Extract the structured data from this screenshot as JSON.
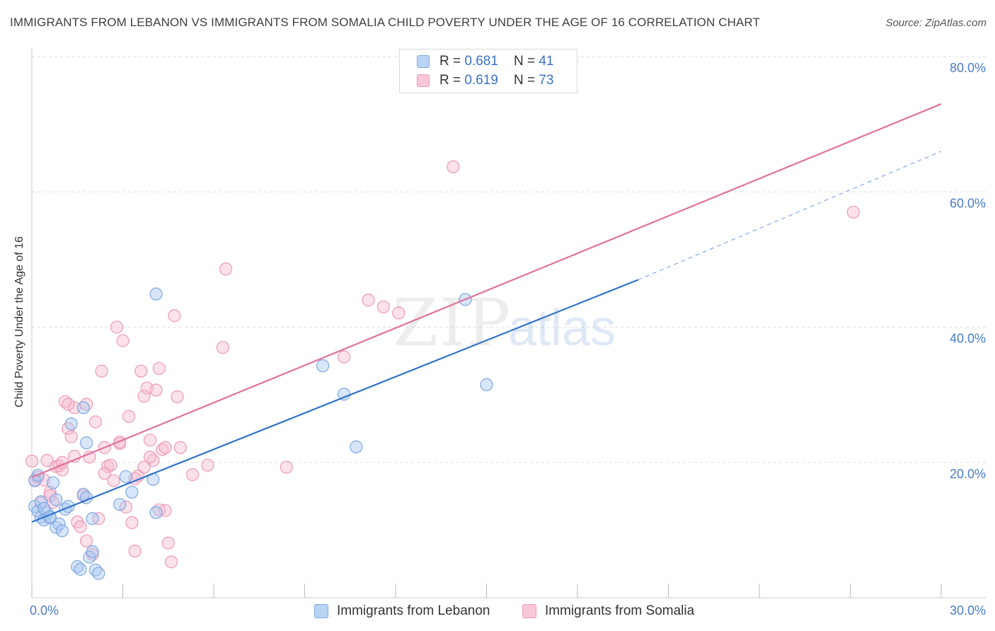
{
  "title": "IMMIGRANTS FROM LEBANON VS IMMIGRANTS FROM SOMALIA CHILD POVERTY UNDER THE AGE OF 16 CORRELATION CHART",
  "source": "Source: ZipAtlas.com",
  "watermark": {
    "zip": "ZIP",
    "atlas": "atlas"
  },
  "legend": {
    "rows": [
      {
        "r_label": "R = ",
        "r_value": "0.681",
        "n_label": "N = ",
        "n_value": "41"
      },
      {
        "r_label": "R = ",
        "r_value": "0.619",
        "n_label": "N = ",
        "n_value": "73"
      }
    ]
  },
  "colors": {
    "lebanon_fill": "#a9c8f2",
    "lebanon_stroke": "#7fa8e0",
    "lebanon_line": "#2f72cc",
    "somalia_fill": "#f7bcd0",
    "somalia_stroke": "#ec9ab6",
    "somalia_line": "#e0719a",
    "grid": "#dddddd",
    "tick_text": "#4a7cc9"
  },
  "chart_data": {
    "type": "scatter",
    "title": "IMMIGRANTS FROM LEBANON VS IMMIGRANTS FROM SOMALIA CHILD POVERTY UNDER THE AGE OF 16 CORRELATION CHART",
    "xlabel": "",
    "ylabel": "Child Poverty Under the Age of 16",
    "xlim": [
      0,
      30
    ],
    "ylim": [
      0,
      80
    ],
    "x_tick_labels": [
      "0.0%",
      "30.0%"
    ],
    "y_ticks": [
      20,
      40,
      60,
      80
    ],
    "y_tick_labels": [
      "20.0%",
      "40.0%",
      "60.0%",
      "80.0%"
    ],
    "grid": true,
    "legend_position": "top-center",
    "series": [
      {
        "name": "Immigrants from Lebanon",
        "R": 0.681,
        "N": 41,
        "points": [
          [
            0.1,
            13.5
          ],
          [
            0.2,
            12.8
          ],
          [
            0.3,
            14.2
          ],
          [
            0.3,
            11.9
          ],
          [
            0.4,
            11.5
          ],
          [
            0.5,
            12.5
          ],
          [
            0.6,
            11.8
          ],
          [
            0.7,
            17.0
          ],
          [
            0.8,
            10.4
          ],
          [
            0.8,
            14.5
          ],
          [
            0.9,
            10.9
          ],
          [
            1.0,
            9.9
          ],
          [
            1.1,
            13.1
          ],
          [
            1.2,
            13.5
          ],
          [
            1.3,
            25.7
          ],
          [
            1.5,
            4.6
          ],
          [
            1.6,
            4.2
          ],
          [
            1.7,
            15.3
          ],
          [
            1.7,
            28.1
          ],
          [
            1.8,
            14.8
          ],
          [
            1.8,
            22.9
          ],
          [
            1.9,
            6.0
          ],
          [
            2.0,
            11.7
          ],
          [
            2.0,
            6.8
          ],
          [
            2.1,
            4.1
          ],
          [
            2.2,
            3.6
          ],
          [
            2.9,
            13.8
          ],
          [
            3.1,
            17.9
          ],
          [
            3.3,
            15.6
          ],
          [
            4.0,
            17.5
          ],
          [
            4.1,
            12.6
          ],
          [
            4.1,
            44.9
          ],
          [
            9.6,
            34.3
          ],
          [
            10.3,
            30.1
          ],
          [
            10.7,
            22.3
          ],
          [
            14.3,
            44.1
          ],
          [
            15.0,
            31.5
          ],
          [
            0.1,
            17.3
          ],
          [
            0.2,
            18.1
          ],
          [
            0.4,
            13.2
          ],
          [
            0.6,
            12.0
          ]
        ],
        "trend": {
          "x_start": 0,
          "y_start": 11.2,
          "x_solid_end": 20.0,
          "y_solid_end": 47.0,
          "x_end": 30,
          "y_end": 66.0,
          "dashed_extension": true
        }
      },
      {
        "name": "Immigrants from Somalia",
        "R": 0.619,
        "N": 73,
        "points": [
          [
            0.0,
            20.2
          ],
          [
            0.1,
            17.4
          ],
          [
            0.2,
            17.8
          ],
          [
            0.3,
            14.0
          ],
          [
            0.4,
            17.4
          ],
          [
            0.5,
            20.3
          ],
          [
            0.6,
            15.6
          ],
          [
            0.7,
            14.1
          ],
          [
            0.8,
            19.4
          ],
          [
            0.9,
            19.5
          ],
          [
            1.0,
            18.9
          ],
          [
            1.1,
            29.0
          ],
          [
            1.2,
            25.0
          ],
          [
            1.3,
            23.8
          ],
          [
            1.4,
            28.1
          ],
          [
            1.4,
            20.9
          ],
          [
            1.5,
            11.2
          ],
          [
            1.6,
            10.5
          ],
          [
            1.7,
            15.1
          ],
          [
            1.8,
            8.4
          ],
          [
            1.9,
            20.8
          ],
          [
            2.0,
            6.4
          ],
          [
            2.1,
            26.0
          ],
          [
            2.2,
            11.7
          ],
          [
            2.3,
            33.5
          ],
          [
            2.4,
            22.2
          ],
          [
            2.5,
            19.4
          ],
          [
            2.6,
            19.6
          ],
          [
            2.7,
            17.3
          ],
          [
            2.8,
            40.0
          ],
          [
            2.9,
            22.8
          ],
          [
            3.0,
            38.0
          ],
          [
            3.1,
            13.4
          ],
          [
            3.2,
            26.8
          ],
          [
            3.3,
            11.1
          ],
          [
            3.4,
            6.9
          ],
          [
            3.5,
            18.0
          ],
          [
            3.6,
            33.5
          ],
          [
            3.7,
            19.3
          ],
          [
            3.8,
            31.0
          ],
          [
            3.9,
            23.3
          ],
          [
            4.0,
            20.3
          ],
          [
            4.1,
            30.7
          ],
          [
            4.2,
            33.9
          ],
          [
            4.3,
            21.9
          ],
          [
            4.4,
            12.9
          ],
          [
            4.5,
            8.1
          ],
          [
            4.6,
            5.3
          ],
          [
            4.7,
            41.7
          ],
          [
            4.8,
            29.7
          ],
          [
            4.9,
            22.2
          ],
          [
            5.3,
            18.2
          ],
          [
            5.8,
            19.6
          ],
          [
            6.3,
            37.0
          ],
          [
            6.4,
            48.6
          ],
          [
            8.4,
            19.3
          ],
          [
            10.3,
            35.6
          ],
          [
            11.1,
            44.0
          ],
          [
            11.6,
            43.0
          ],
          [
            12.1,
            42.1
          ],
          [
            13.9,
            63.7
          ],
          [
            27.1,
            57.0
          ],
          [
            0.6,
            15.1
          ],
          [
            1.0,
            20.0
          ],
          [
            1.2,
            28.6
          ],
          [
            2.4,
            18.4
          ],
          [
            2.9,
            23.0
          ],
          [
            3.4,
            17.6
          ],
          [
            3.9,
            20.8
          ],
          [
            4.2,
            13.0
          ],
          [
            4.4,
            22.2
          ],
          [
            1.8,
            28.6
          ],
          [
            3.7,
            29.8
          ]
        ],
        "trend": {
          "x_start": 0,
          "y_start": 17.8,
          "x_end": 30,
          "y_end": 73.0
        }
      }
    ]
  },
  "bottom_legend": [
    {
      "label": "Immigrants from Lebanon"
    },
    {
      "label": "Immigrants from Somalia"
    }
  ]
}
